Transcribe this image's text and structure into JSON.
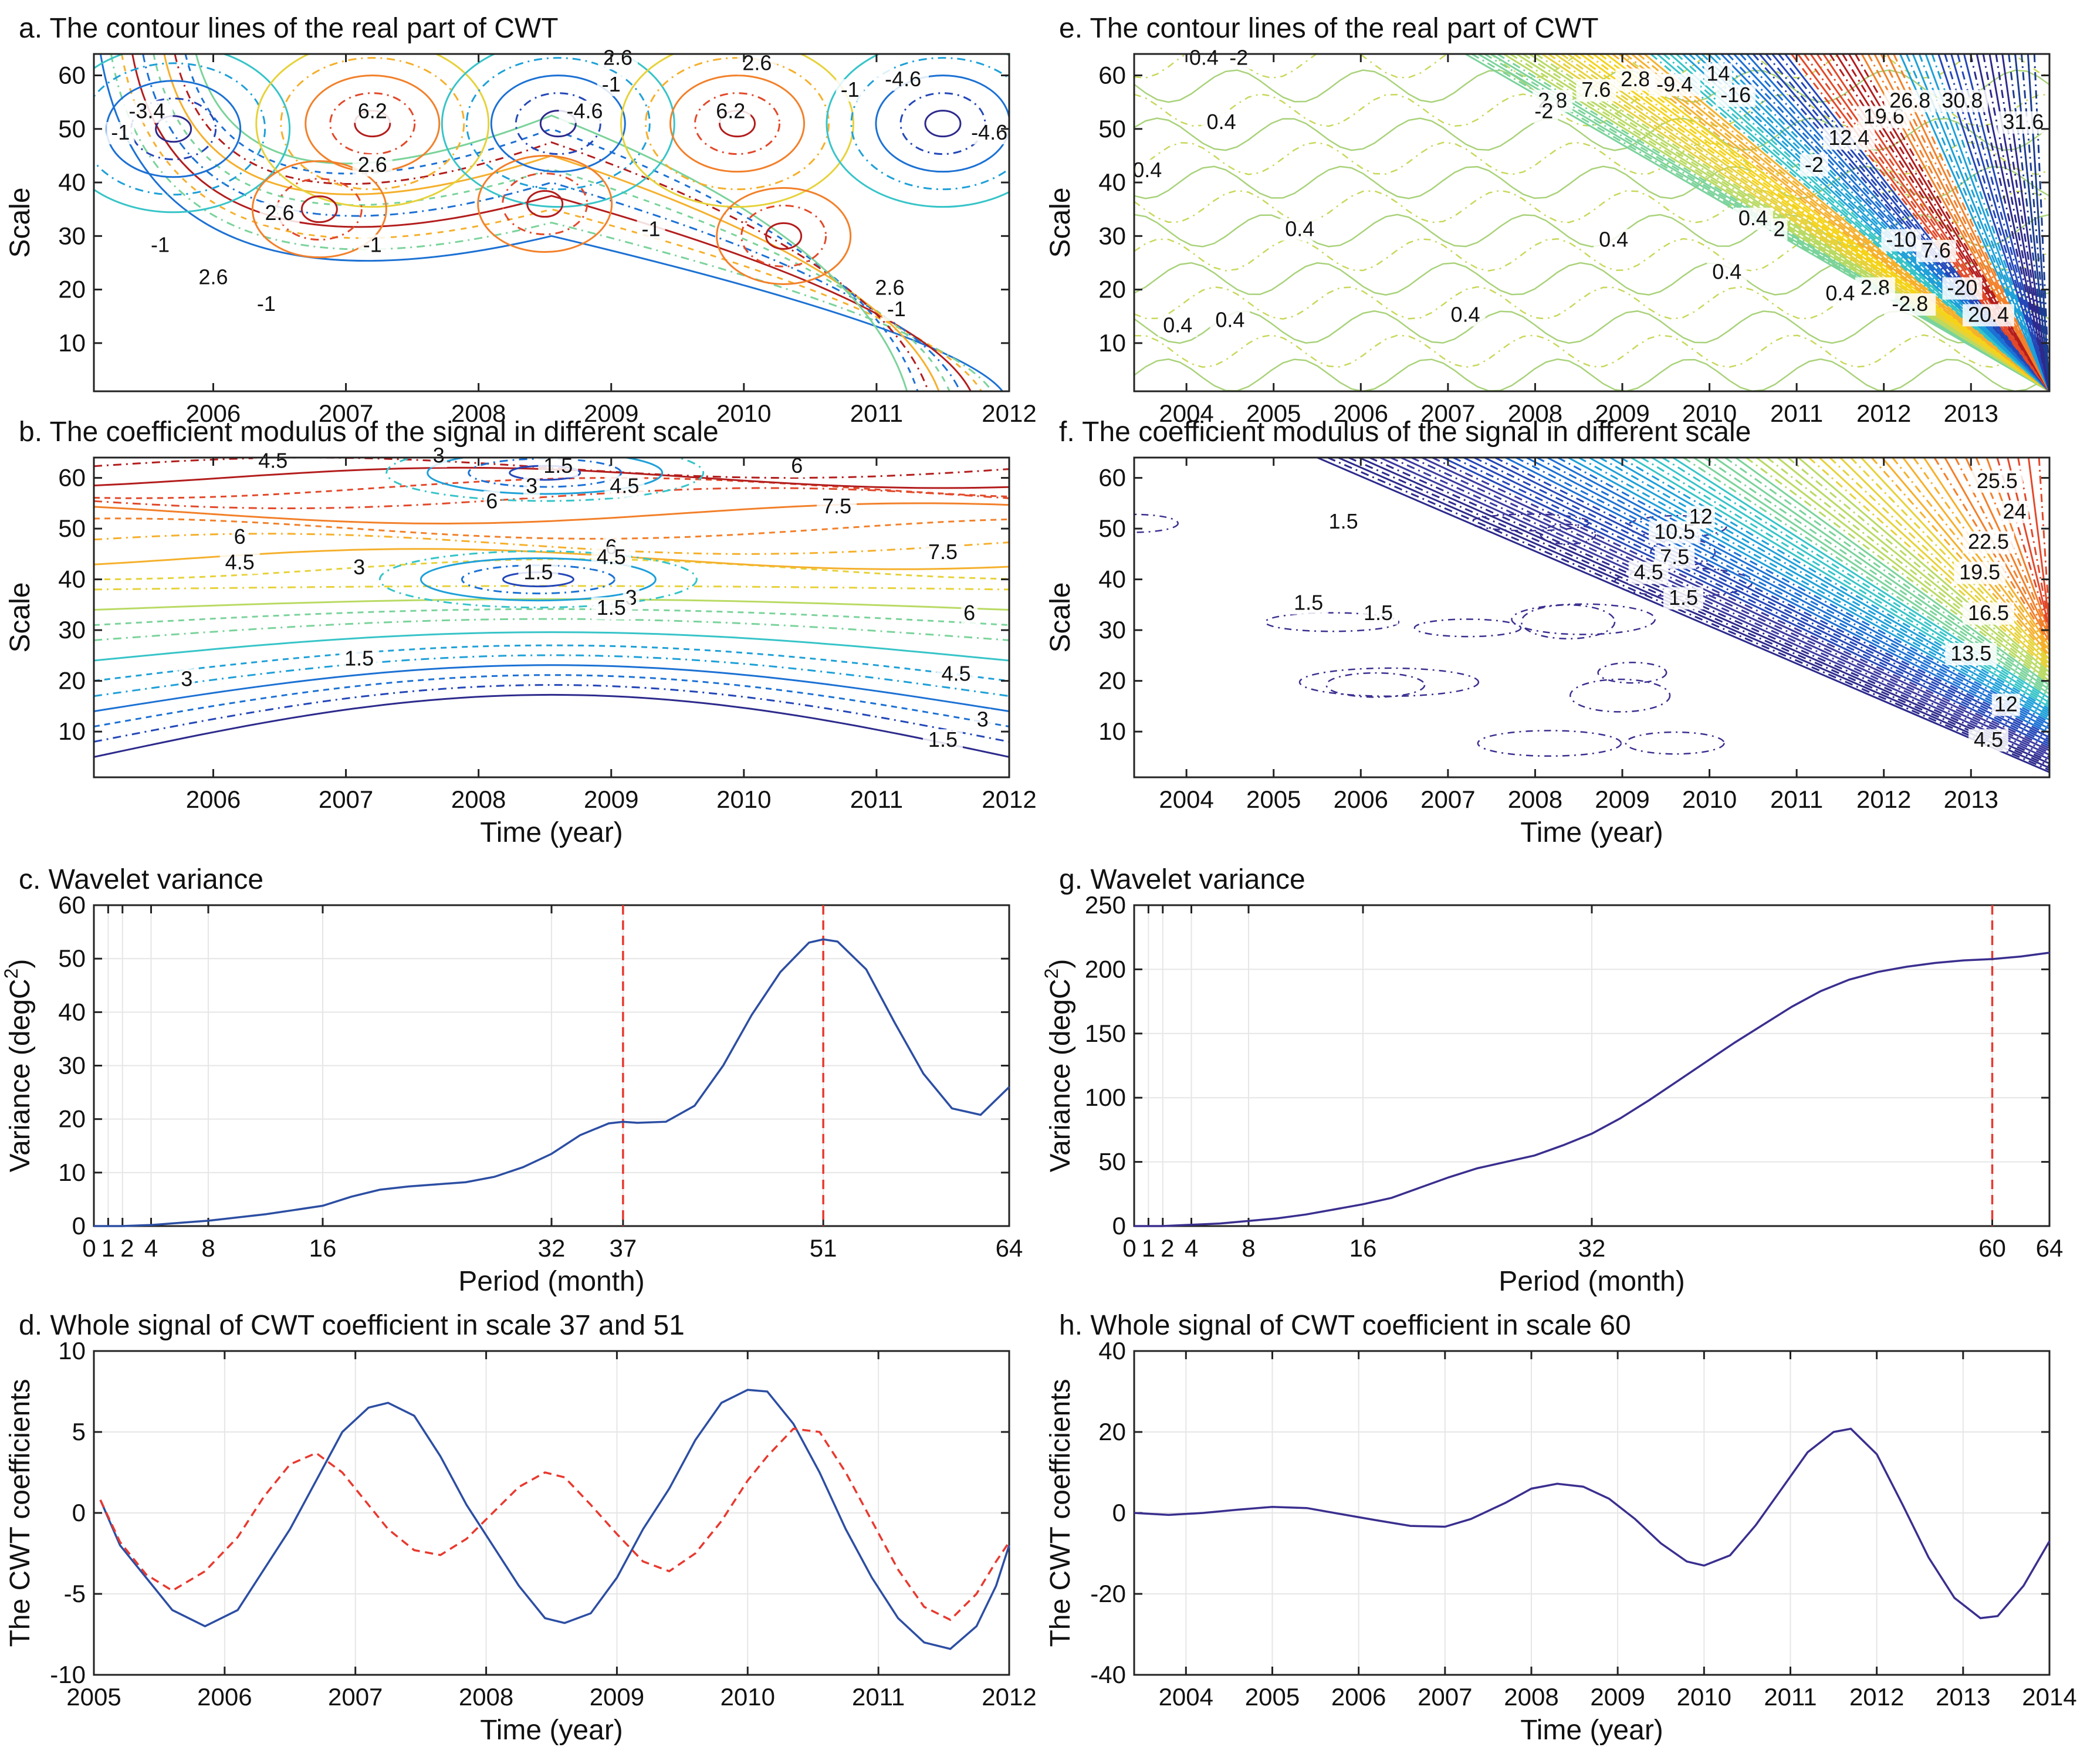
{
  "chart_data": [
    {
      "type": "contour",
      "id": "a",
      "title": "a. The contour lines of the real part of CWT",
      "ylabel": "Scale",
      "xlim": [
        2005.1,
        2012
      ],
      "ylim": [
        1,
        64
      ],
      "xticks": [
        2006,
        2007,
        2008,
        2009,
        2010,
        2011,
        2012
      ],
      "yticks": [
        10,
        20,
        30,
        40,
        50,
        60
      ],
      "blobs": [
        {
          "x": 2005.7,
          "y": 50,
          "v": -4.6
        },
        {
          "x": 2007.2,
          "y": 51,
          "v": 6.2
        },
        {
          "x": 2008.6,
          "y": 51,
          "v": -4.6
        },
        {
          "x": 2009.95,
          "y": 51,
          "v": 6.2
        },
        {
          "x": 2011.5,
          "y": 51,
          "v": -4.6
        },
        {
          "x": 2008.5,
          "y": 36,
          "v": 2.6
        },
        {
          "x": 2006.8,
          "y": 35,
          "v": 2.6
        },
        {
          "x": 2010.3,
          "y": 30,
          "v": 2.6
        }
      ],
      "contour_labels": [
        {
          "x": 2005.3,
          "y": 48,
          "text": "-1"
        },
        {
          "x": 2005.5,
          "y": 52,
          "text": "-3.4"
        },
        {
          "x": 2007.2,
          "y": 52,
          "text": "6.2"
        },
        {
          "x": 2007.2,
          "y": 42,
          "text": "2.6"
        },
        {
          "x": 2006.5,
          "y": 33,
          "text": "2.6"
        },
        {
          "x": 2007.2,
          "y": 27,
          "text": "-1"
        },
        {
          "x": 2005.6,
          "y": 27,
          "text": "-1"
        },
        {
          "x": 2006.0,
          "y": 21,
          "text": "2.6"
        },
        {
          "x": 2006.4,
          "y": 16,
          "text": "-1"
        },
        {
          "x": 2009.05,
          "y": 62,
          "text": "2.6"
        },
        {
          "x": 2009.0,
          "y": 57,
          "text": "-1"
        },
        {
          "x": 2008.8,
          "y": 52,
          "text": "-4.6"
        },
        {
          "x": 2009.3,
          "y": 30,
          "text": "-1"
        },
        {
          "x": 2010.1,
          "y": 61,
          "text": "2.6"
        },
        {
          "x": 2009.9,
          "y": 52,
          "text": "6.2"
        },
        {
          "x": 2010.8,
          "y": 56,
          "text": "-1"
        },
        {
          "x": 2011.2,
          "y": 58,
          "text": "-4.6"
        },
        {
          "x": 2011.85,
          "y": 48,
          "text": "-4.6"
        },
        {
          "x": 2011.1,
          "y": 19,
          "text": "2.6"
        },
        {
          "x": 2011.15,
          "y": 15,
          "text": "-1"
        }
      ]
    },
    {
      "type": "contour",
      "id": "b",
      "title": "b. The coefficient modulus of the signal in different scale",
      "ylabel": "Scale",
      "xlabel": "Time (year)",
      "xlim": [
        2005.1,
        2012
      ],
      "ylim": [
        1,
        64
      ],
      "xticks": [
        2006,
        2007,
        2008,
        2009,
        2010,
        2011,
        2012
      ],
      "yticks": [
        10,
        20,
        30,
        40,
        50,
        60
      ],
      "contour_labels": [
        {
          "x": 2006.45,
          "y": 62,
          "text": "4.5"
        },
        {
          "x": 2007.7,
          "y": 63,
          "text": "3"
        },
        {
          "x": 2008.6,
          "y": 61,
          "text": "1.5"
        },
        {
          "x": 2008.4,
          "y": 57,
          "text": "3"
        },
        {
          "x": 2008.1,
          "y": 54,
          "text": "6"
        },
        {
          "x": 2009.1,
          "y": 57,
          "text": "4.5"
        },
        {
          "x": 2010.4,
          "y": 61,
          "text": "6"
        },
        {
          "x": 2010.7,
          "y": 53,
          "text": "7.5"
        },
        {
          "x": 2006.2,
          "y": 47,
          "text": "6"
        },
        {
          "x": 2006.2,
          "y": 42,
          "text": "4.5"
        },
        {
          "x": 2007.1,
          "y": 41,
          "text": "3"
        },
        {
          "x": 2008.45,
          "y": 40,
          "text": "1.5"
        },
        {
          "x": 2009.0,
          "y": 45,
          "text": "6"
        },
        {
          "x": 2009.0,
          "y": 43,
          "text": "4.5"
        },
        {
          "x": 2011.5,
          "y": 44,
          "text": "7.5"
        },
        {
          "x": 2009.15,
          "y": 35,
          "text": "3"
        },
        {
          "x": 2009.0,
          "y": 33,
          "text": "1.5"
        },
        {
          "x": 2011.7,
          "y": 32,
          "text": "6"
        },
        {
          "x": 2007.1,
          "y": 23,
          "text": "1.5"
        },
        {
          "x": 2005.8,
          "y": 19,
          "text": "3"
        },
        {
          "x": 2011.6,
          "y": 20,
          "text": "4.5"
        },
        {
          "x": 2011.8,
          "y": 11,
          "text": "3"
        },
        {
          "x": 2011.5,
          "y": 7,
          "text": "1.5"
        }
      ]
    },
    {
      "type": "line",
      "id": "c",
      "title": "c. Wavelet variance",
      "xlabel": "Period (month)",
      "ylabel_base": "Variance (degC",
      "ylabel_sup": "2",
      "ylabel_end": ")",
      "xlim": [
        0,
        64
      ],
      "ylim": [
        0,
        60
      ],
      "xticks": [
        0,
        1,
        2,
        4,
        8,
        16,
        32,
        37,
        51,
        64
      ],
      "xticklabels": [
        "0",
        "1",
        "2",
        "4",
        "8",
        "16",
        "32",
        "37",
        "51",
        "64"
      ],
      "yticks": [
        0,
        10,
        20,
        30,
        40,
        50,
        60
      ],
      "vlines": [
        37,
        51
      ],
      "x": [
        0,
        2,
        4,
        6,
        8,
        10,
        12,
        14,
        16,
        18,
        20,
        22,
        24,
        26,
        28,
        30,
        32,
        34,
        36,
        37,
        38,
        40,
        42,
        44,
        46,
        48,
        50,
        51,
        52,
        54,
        56,
        58,
        60,
        62,
        64
      ],
      "series": [
        {
          "color": "#2c4ea3",
          "dash": false,
          "values": [
            0,
            0,
            0.2,
            0.6,
            1.0,
            1.6,
            2.2,
            3.0,
            3.8,
            5.5,
            6.8,
            7.4,
            7.8,
            8.2,
            9.2,
            11.0,
            13.5,
            17.0,
            19.2,
            19.5,
            19.3,
            19.5,
            22.5,
            30.0,
            39.5,
            47.5,
            53.0,
            53.6,
            53.2,
            48.0,
            38.0,
            28.5,
            22.0,
            20.8,
            26.0
          ]
        }
      ]
    },
    {
      "type": "line",
      "id": "d",
      "title": "d. Whole signal of CWT coefficient in scale 37 and 51",
      "xlabel": "Time (year)",
      "ylabel": "The CWT coefficients",
      "xlim": [
        2005,
        2012
      ],
      "ylim": [
        -10,
        10
      ],
      "xticks": [
        2005,
        2006,
        2007,
        2008,
        2009,
        2010,
        2011,
        2012
      ],
      "yticks": [
        -10,
        -5,
        0,
        5,
        10
      ],
      "x": [
        2005.05,
        2005.2,
        2005.4,
        2005.6,
        2005.85,
        2006.1,
        2006.3,
        2006.5,
        2006.7,
        2006.9,
        2007.1,
        2007.25,
        2007.45,
        2007.65,
        2007.85,
        2008.05,
        2008.25,
        2008.45,
        2008.6,
        2008.8,
        2009.0,
        2009.2,
        2009.4,
        2009.6,
        2009.8,
        2010.0,
        2010.15,
        2010.35,
        2010.55,
        2010.75,
        2010.95,
        2011.15,
        2011.35,
        2011.55,
        2011.75,
        2011.9,
        2012.0
      ],
      "series": [
        {
          "color": "#2c4ea3",
          "dash": false,
          "values": [
            0.8,
            -2.0,
            -4.0,
            -6.0,
            -7.0,
            -6.0,
            -3.5,
            -1.0,
            2.0,
            5.0,
            6.5,
            6.8,
            6.0,
            3.5,
            0.5,
            -2.0,
            -4.5,
            -6.5,
            -6.8,
            -6.2,
            -4.0,
            -1.0,
            1.5,
            4.5,
            6.8,
            7.6,
            7.5,
            5.5,
            2.5,
            -1.0,
            -4.0,
            -6.5,
            -8.0,
            -8.4,
            -7.0,
            -4.5,
            -2.0
          ]
        },
        {
          "color": "#e8392f",
          "dash": true,
          "values": [
            0.8,
            -1.8,
            -3.8,
            -4.8,
            -3.6,
            -1.5,
            1.0,
            3.0,
            3.7,
            2.5,
            0.5,
            -1.0,
            -2.3,
            -2.6,
            -1.6,
            0.0,
            1.6,
            2.5,
            2.2,
            0.5,
            -1.3,
            -3.0,
            -3.6,
            -2.5,
            -0.5,
            2.0,
            3.5,
            5.2,
            5.0,
            2.5,
            -0.5,
            -3.5,
            -5.8,
            -6.6,
            -5.0,
            -3.0,
            -1.8
          ]
        }
      ]
    },
    {
      "type": "contour",
      "id": "e",
      "title": "e. The contour lines of the real part of CWT",
      "ylabel": "Scale",
      "xlim": [
        2003.4,
        2013.9
      ],
      "ylim": [
        1,
        64
      ],
      "xticks": [
        2004,
        2005,
        2006,
        2007,
        2008,
        2009,
        2010,
        2011,
        2012,
        2013
      ],
      "yticks": [
        10,
        20,
        30,
        40,
        50,
        60
      ],
      "contour_labels": [
        {
          "x": 2004.2,
          "y": 62,
          "text": "0.4"
        },
        {
          "x": 2004.6,
          "y": 62,
          "text": "-2"
        },
        {
          "x": 2004.4,
          "y": 50,
          "text": "0.4"
        },
        {
          "x": 2003.55,
          "y": 41,
          "text": "0.4"
        },
        {
          "x": 2005.3,
          "y": 30,
          "text": "0.4"
        },
        {
          "x": 2003.9,
          "y": 12,
          "text": "0.4"
        },
        {
          "x": 2004.5,
          "y": 13,
          "text": "0.4"
        },
        {
          "x": 2007.2,
          "y": 14,
          "text": "0.4"
        },
        {
          "x": 2008.9,
          "y": 28,
          "text": "0.4"
        },
        {
          "x": 2010.2,
          "y": 22,
          "text": "0.4"
        },
        {
          "x": 2008.2,
          "y": 54,
          "text": "2.8"
        },
        {
          "x": 2008.1,
          "y": 52,
          "text": "-2"
        },
        {
          "x": 2008.7,
          "y": 56,
          "text": "7.6"
        },
        {
          "x": 2009.15,
          "y": 58,
          "text": "2.8"
        },
        {
          "x": 2009.6,
          "y": 57,
          "text": "-9.4"
        },
        {
          "x": 2010.1,
          "y": 59,
          "text": "14"
        },
        {
          "x": 2010.3,
          "y": 55,
          "text": "-16"
        },
        {
          "x": 2010.5,
          "y": 32,
          "text": "0.4"
        },
        {
          "x": 2010.8,
          "y": 30,
          "text": "2"
        },
        {
          "x": 2011.2,
          "y": 42,
          "text": "-2"
        },
        {
          "x": 2011.6,
          "y": 47,
          "text": "12.4"
        },
        {
          "x": 2012.0,
          "y": 51,
          "text": "19.6"
        },
        {
          "x": 2012.3,
          "y": 54,
          "text": "26.8"
        },
        {
          "x": 2012.9,
          "y": 54,
          "text": "30.8"
        },
        {
          "x": 2013.6,
          "y": 50,
          "text": "31.6"
        },
        {
          "x": 2012.2,
          "y": 28,
          "text": "-10"
        },
        {
          "x": 2012.6,
          "y": 26,
          "text": "7.6"
        },
        {
          "x": 2012.9,
          "y": 19,
          "text": "-20"
        },
        {
          "x": 2011.5,
          "y": 18,
          "text": "0.4"
        },
        {
          "x": 2011.9,
          "y": 19,
          "text": "2.8"
        },
        {
          "x": 2012.3,
          "y": 16,
          "text": "-2.8"
        },
        {
          "x": 2013.2,
          "y": 14,
          "text": "20.4"
        }
      ]
    },
    {
      "type": "contour",
      "id": "f",
      "title": "f. The coefficient modulus of the signal in different scale",
      "ylabel": "Scale",
      "xlabel": "Time (year)",
      "xlim": [
        2003.4,
        2013.9
      ],
      "ylim": [
        1,
        64
      ],
      "xticks": [
        2004,
        2005,
        2006,
        2007,
        2008,
        2009,
        2010,
        2011,
        2012,
        2013
      ],
      "yticks": [
        10,
        20,
        30,
        40,
        50,
        60
      ],
      "contour_labels": [
        {
          "x": 2005.8,
          "y": 50,
          "text": "1.5"
        },
        {
          "x": 2005.4,
          "y": 34,
          "text": "1.5"
        },
        {
          "x": 2006.2,
          "y": 32,
          "text": "1.5"
        },
        {
          "x": 2009.6,
          "y": 48,
          "text": "10.5"
        },
        {
          "x": 2009.9,
          "y": 51,
          "text": "12"
        },
        {
          "x": 2009.6,
          "y": 43,
          "text": "7.5"
        },
        {
          "x": 2009.3,
          "y": 40,
          "text": "4.5"
        },
        {
          "x": 2009.7,
          "y": 35,
          "text": "1.5"
        },
        {
          "x": 2013.3,
          "y": 58,
          "text": "25.5"
        },
        {
          "x": 2013.5,
          "y": 52,
          "text": "24"
        },
        {
          "x": 2013.2,
          "y": 46,
          "text": "22.5"
        },
        {
          "x": 2013.1,
          "y": 40,
          "text": "19.5"
        },
        {
          "x": 2013.2,
          "y": 32,
          "text": "16.5"
        },
        {
          "x": 2013.0,
          "y": 24,
          "text": "13.5"
        },
        {
          "x": 2013.4,
          "y": 14,
          "text": "12"
        },
        {
          "x": 2013.2,
          "y": 7,
          "text": "4.5"
        }
      ]
    },
    {
      "type": "line",
      "id": "g",
      "title": "g. Wavelet variance",
      "xlabel": "Period (month)",
      "ylabel_base": "Variance (degC",
      "ylabel_sup": "2",
      "ylabel_end": ")",
      "xlim": [
        0,
        64
      ],
      "ylim": [
        0,
        250
      ],
      "xticks": [
        0,
        1,
        2,
        4,
        8,
        16,
        32,
        60,
        64
      ],
      "xticklabels": [
        "0",
        "1",
        "2",
        "4",
        "8",
        "16",
        "32",
        "60",
        "64"
      ],
      "yticks": [
        0,
        50,
        100,
        150,
        200,
        250
      ],
      "vlines": [
        60
      ],
      "x": [
        0,
        2,
        4,
        6,
        8,
        10,
        12,
        14,
        16,
        18,
        20,
        22,
        24,
        26,
        28,
        30,
        32,
        34,
        36,
        38,
        40,
        42,
        44,
        46,
        48,
        50,
        52,
        54,
        56,
        58,
        60,
        62,
        64
      ],
      "series": [
        {
          "color": "#3a2f8f",
          "dash": false,
          "values": [
            0,
            0,
            1,
            2,
            4,
            6,
            9,
            13,
            17,
            22,
            30,
            38,
            45,
            50,
            55,
            63,
            72,
            84,
            98,
            113,
            128,
            143,
            157,
            171,
            183,
            192,
            198,
            202,
            205,
            207,
            208,
            210,
            213
          ]
        }
      ]
    },
    {
      "type": "line",
      "id": "h",
      "title": "h. Whole signal of CWT coefficient in scale 60",
      "xlabel": "Time (year)",
      "ylabel": "The CWT coefficients",
      "xlim": [
        2003.4,
        2014
      ],
      "ylim": [
        -40,
        40
      ],
      "xticks": [
        2004,
        2005,
        2006,
        2007,
        2008,
        2009,
        2010,
        2011,
        2012,
        2013,
        2014
      ],
      "yticks": [
        -40,
        -20,
        0,
        20,
        40
      ],
      "x": [
        2003.4,
        2003.8,
        2004.2,
        2004.6,
        2005.0,
        2005.4,
        2005.8,
        2006.2,
        2006.6,
        2007.0,
        2007.3,
        2007.7,
        2008.0,
        2008.3,
        2008.6,
        2008.9,
        2009.2,
        2009.5,
        2009.8,
        2010.0,
        2010.3,
        2010.6,
        2010.9,
        2011.2,
        2011.5,
        2011.7,
        2012.0,
        2012.3,
        2012.6,
        2012.9,
        2013.2,
        2013.4,
        2013.7,
        2014.0
      ],
      "series": [
        {
          "color": "#3a2f8f",
          "dash": false,
          "values": [
            0,
            -0.5,
            0,
            0.8,
            1.5,
            1.2,
            -0.3,
            -1.8,
            -3.2,
            -3.4,
            -1.5,
            2.5,
            6.0,
            7.2,
            6.5,
            3.5,
            -1.5,
            -7.5,
            -12.0,
            -13.0,
            -10.5,
            -3.0,
            6.0,
            15.0,
            20.0,
            20.8,
            14.5,
            2.0,
            -11.0,
            -21.0,
            -26.0,
            -25.5,
            -18.0,
            -7.0
          ]
        }
      ]
    }
  ]
}
